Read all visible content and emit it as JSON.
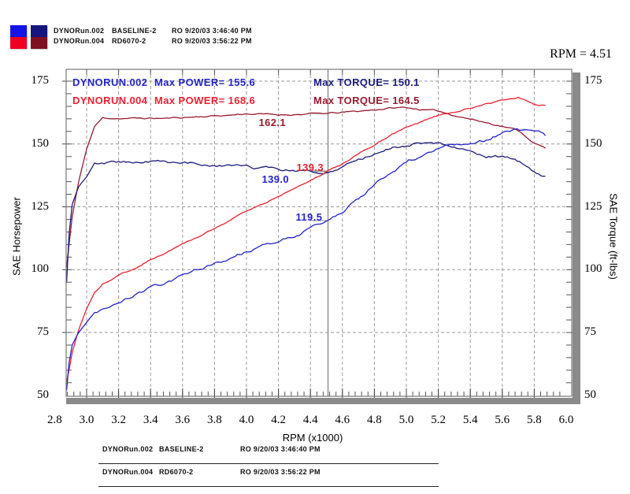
{
  "header": {
    "rpm_readout": "RPM = 4.51",
    "legend": {
      "rows": [
        {
          "file": "DYNORun.002",
          "desc": "BASELINE-2",
          "stamp": "RO  9/20/03 3:46:40 PM"
        },
        {
          "file": "DYNORun.004",
          "desc": "RD6070-2",
          "stamp": "RO  9/20/03 3:56:22 PM"
        }
      ]
    }
  },
  "colors": {
    "power_002": "#2323cc",
    "torque_002": "#1b1b7e",
    "power_004": "#ee1f30",
    "torque_004": "#9a1a30",
    "swatch_power_top": "#1414e6",
    "swatch_power_bottom": "#ee0022",
    "swatch_torque_top": "#16167e",
    "swatch_torque_bottom": "#7e1022",
    "grid": "#9a9a9a",
    "border": "#777777",
    "shadow": "#8a8a8a",
    "cursor": "#8a8a8a"
  },
  "annotations": {
    "rows": [
      {
        "run": "DYNORUN.002",
        "power": "Max POWER= 155.6",
        "torque": "Max TORQUE= 150.1"
      },
      {
        "run": "DYNORUN.004",
        "power": "Max POWER= 168.6",
        "torque": "Max TORQUE= 164.5"
      }
    ]
  },
  "axes": {
    "left_title": "SAE Horsepower",
    "right_title": "SAE Torque (ft-lbs)",
    "x_title": "RPM (x1000)",
    "y_ticks": [
      "175",
      "150",
      "125",
      "100",
      "75",
      "50"
    ],
    "x_ticks": [
      "2.8",
      "3.0",
      "3.2",
      "3.4",
      "3.6",
      "3.8",
      "4.0",
      "4.2",
      "4.4",
      "4.6",
      "4.8",
      "5.0",
      "5.2",
      "5.4",
      "5.6",
      "5.8",
      "6.0"
    ]
  },
  "chart_data": {
    "type": "line",
    "x_axis": {
      "label": "RPM (x1000)",
      "min": 2.8,
      "max": 6.0,
      "tick_step": 0.2
    },
    "y_left_axis": {
      "label": "SAE Horsepower",
      "min": 50,
      "max": 175,
      "tick_step": 25
    },
    "y_right_axis": {
      "label": "SAE Torque (ft-lbs)",
      "min": 50,
      "max": 175,
      "tick_step": 25
    },
    "grid": true,
    "cursor": {
      "rpm": 4.51,
      "readout": "RPM = 4.51",
      "labels": [
        {
          "text": "162.1",
          "value": 162.1,
          "series": "run004_torque",
          "color": "#9a1a30"
        },
        {
          "text": "139.3",
          "value": 139.3,
          "series": "run004_power",
          "color": "#ee1f30"
        },
        {
          "text": "139.0",
          "value": 139.0,
          "series": "run002_torque",
          "color": "#2323cc"
        },
        {
          "text": "119.5",
          "value": 119.5,
          "series": "run002_power",
          "color": "#2323cc"
        }
      ]
    },
    "series": [
      {
        "name": "DYNORUN.004 Torque",
        "id": "run004_torque",
        "color": "#9a1a30",
        "max": 164.5,
        "jitter": 0.5,
        "points": [
          [
            2.875,
            101
          ],
          [
            2.89,
            110
          ],
          [
            2.91,
            121
          ],
          [
            2.95,
            135
          ],
          [
            3.0,
            148
          ],
          [
            3.05,
            157
          ],
          [
            3.1,
            160.3
          ],
          [
            3.3,
            160.2
          ],
          [
            3.5,
            160.2
          ],
          [
            3.7,
            160.9
          ],
          [
            3.9,
            161.5
          ],
          [
            4.0,
            162.1
          ],
          [
            4.2,
            161.6
          ],
          [
            4.4,
            162.0
          ],
          [
            4.51,
            162.1
          ],
          [
            4.7,
            163.0
          ],
          [
            4.9,
            164.3
          ],
          [
            5.0,
            164.5
          ],
          [
            5.1,
            163.7
          ],
          [
            5.2,
            163.0
          ],
          [
            5.3,
            161.5
          ],
          [
            5.4,
            160.0
          ],
          [
            5.5,
            158.5
          ],
          [
            5.6,
            157.2
          ],
          [
            5.7,
            155.4
          ],
          [
            5.75,
            153.0
          ],
          [
            5.8,
            150.5
          ],
          [
            5.87,
            148.3
          ]
        ]
      },
      {
        "name": "DYNORUN.002 Torque",
        "id": "run002_torque",
        "color": "#1b1b7e",
        "max": 150.1,
        "jitter": 0.9,
        "points": [
          [
            2.875,
            95
          ],
          [
            2.89,
            114
          ],
          [
            2.91,
            126
          ],
          [
            2.95,
            133
          ],
          [
            3.0,
            137
          ],
          [
            3.05,
            142.5
          ],
          [
            3.2,
            142.8
          ],
          [
            3.4,
            142.9
          ],
          [
            3.6,
            142.3
          ],
          [
            3.8,
            141.7
          ],
          [
            4.0,
            140.5
          ],
          [
            4.2,
            140.0
          ],
          [
            4.35,
            139.2
          ],
          [
            4.51,
            139.0
          ],
          [
            4.6,
            141.0
          ],
          [
            4.7,
            143.2
          ],
          [
            4.8,
            146.1
          ],
          [
            4.9,
            148.4
          ],
          [
            5.05,
            150.1
          ],
          [
            5.1,
            149.6
          ],
          [
            5.2,
            149.9
          ],
          [
            5.3,
            148.3
          ],
          [
            5.4,
            146.4
          ],
          [
            5.5,
            145.2
          ],
          [
            5.6,
            144.9
          ],
          [
            5.68,
            143.8
          ],
          [
            5.75,
            141.7
          ],
          [
            5.8,
            139.4
          ],
          [
            5.87,
            137.2
          ]
        ]
      },
      {
        "name": "DYNORUN.004 Power",
        "id": "run004_power",
        "color": "#ee1f30",
        "max": 168.6,
        "jitter": 0.45,
        "points": [
          [
            2.875,
            55.5
          ],
          [
            2.89,
            60
          ],
          [
            2.91,
            67
          ],
          [
            2.95,
            76
          ],
          [
            3.0,
            84.5
          ],
          [
            3.05,
            91
          ],
          [
            3.1,
            94.5
          ],
          [
            3.2,
            97.5
          ],
          [
            3.3,
            100.5
          ],
          [
            3.4,
            104
          ],
          [
            3.5,
            106.7
          ],
          [
            3.6,
            110
          ],
          [
            3.7,
            113.3
          ],
          [
            3.8,
            116.6
          ],
          [
            3.9,
            120
          ],
          [
            4.0,
            123.4
          ],
          [
            4.1,
            126.3
          ],
          [
            4.2,
            129.2
          ],
          [
            4.3,
            132.5
          ],
          [
            4.4,
            135.7
          ],
          [
            4.51,
            139.3
          ],
          [
            4.6,
            142.2
          ],
          [
            4.7,
            145.9
          ],
          [
            4.8,
            149.4
          ],
          [
            4.9,
            153.3
          ],
          [
            5.0,
            156.6
          ],
          [
            5.1,
            159.0
          ],
          [
            5.2,
            161.4
          ],
          [
            5.3,
            163.0
          ],
          [
            5.4,
            164.5
          ],
          [
            5.5,
            166.0
          ],
          [
            5.6,
            167.4
          ],
          [
            5.7,
            168.6
          ],
          [
            5.75,
            167.5
          ],
          [
            5.8,
            166.0
          ],
          [
            5.87,
            165.3
          ]
        ]
      },
      {
        "name": "DYNORUN.002 Power",
        "id": "run002_power",
        "color": "#2323cc",
        "max": 155.6,
        "jitter": 1.0,
        "points": [
          [
            2.875,
            52
          ],
          [
            2.89,
            63
          ],
          [
            2.91,
            70
          ],
          [
            2.95,
            75
          ],
          [
            3.0,
            79
          ],
          [
            3.05,
            83
          ],
          [
            3.1,
            84.5
          ],
          [
            3.2,
            87
          ],
          [
            3.3,
            89.5
          ],
          [
            3.4,
            92.5
          ],
          [
            3.5,
            95
          ],
          [
            3.6,
            97.5
          ],
          [
            3.7,
            100
          ],
          [
            3.8,
            102.5
          ],
          [
            3.9,
            104.5
          ],
          [
            4.0,
            107
          ],
          [
            4.1,
            109.5
          ],
          [
            4.2,
            112
          ],
          [
            4.3,
            114
          ],
          [
            4.4,
            116.5
          ],
          [
            4.51,
            119.5
          ],
          [
            4.6,
            123.5
          ],
          [
            4.7,
            128
          ],
          [
            4.8,
            133.5
          ],
          [
            4.9,
            138.5
          ],
          [
            5.0,
            142.8
          ],
          [
            5.1,
            146.0
          ],
          [
            5.2,
            148.5
          ],
          [
            5.3,
            149.5
          ],
          [
            5.4,
            150.5
          ],
          [
            5.5,
            152.0
          ],
          [
            5.6,
            154.5
          ],
          [
            5.68,
            155.6
          ],
          [
            5.75,
            154.8
          ],
          [
            5.8,
            154.0
          ],
          [
            5.87,
            153.3
          ]
        ]
      }
    ]
  },
  "footer": {
    "rows": [
      {
        "file": "DYNORun.002",
        "desc": "BASELINE-2",
        "stamp": "RO  9/20/03 3:46:40 PM"
      },
      {
        "file": "DYNORun.004",
        "desc": "RD6070-2",
        "stamp": "RO  9/20/03 3:56:22 PM"
      }
    ]
  }
}
